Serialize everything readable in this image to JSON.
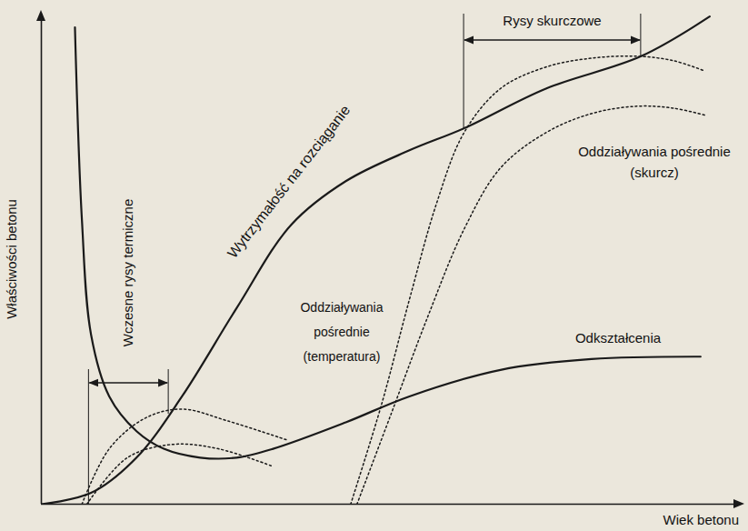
{
  "chart_data": {
    "type": "line",
    "xlabel": "Wiek betonu",
    "ylabel": "Właściwości betonu",
    "xlim": [
      0,
      100
    ],
    "ylim": [
      0,
      100
    ],
    "xticks": [],
    "yticks": [],
    "tick_labels": false,
    "grid": false,
    "series": [
      {
        "name": "Wytrzymałość na rozciąganie",
        "color": "#1a1a1a",
        "line_style": "solid",
        "x": [
          0,
          7.1,
          13.6,
          20.1,
          27.9,
          35.7,
          43.5,
          52.6,
          60.4,
          72.1,
          85.7,
          95.5
        ],
        "values": [
          0,
          2.3,
          9.5,
          22.0,
          40.0,
          57.0,
          65.9,
          72.2,
          76.7,
          84.8,
          91.4,
          99.5
        ]
      },
      {
        "name": "Odkształcenia",
        "color": "#1a1a1a",
        "line_style": "solid",
        "x": [
          4.8,
          5.8,
          7.1,
          9.7,
          13.6,
          17.5,
          22.7,
          27.9,
          33.1,
          43.5,
          52.6,
          65.6,
          78.6,
          94.2
        ],
        "values": [
          97.3,
          57.9,
          34.6,
          22.0,
          14.9,
          11.3,
          9.5,
          9.5,
          11.3,
          16.7,
          22.0,
          27.4,
          29.6,
          30.1
        ]
      },
      {
        "name": "Oddziaływania pośrednie (temperatura)",
        "color": "#1a1a1a",
        "line_style": "dotted",
        "x": [
          5.8,
          9.7,
          14.9,
          20.1,
          26.6,
          35.1
        ],
        "values": [
          0,
          11.3,
          17.6,
          19.4,
          17.0,
          13.1
        ]
      },
      {
        "name": null,
        "color": "#1a1a1a",
        "line_style": "dotted",
        "x": [
          6.5,
          12.3,
          18.8,
          25.3,
          33.1
        ],
        "values": [
          0,
          9.5,
          12.2,
          11.3,
          7.7
        ]
      },
      {
        "name": "Oddziaływania pośrednie (skurcz)",
        "color": "#1a1a1a",
        "line_style": "dotted",
        "x": [
          44.2,
          48.6,
          52.6,
          56.5,
          60.4,
          65.6,
          72.1,
          78.6,
          85.1,
          90.3,
          94.8
        ],
        "values": [
          0,
          20.3,
          41.8,
          61.5,
          75.8,
          84.8,
          89.2,
          91.0,
          91.4,
          90.5,
          88.4
        ]
      },
      {
        "name": null,
        "color": "#1a1a1a",
        "line_style": "dotted",
        "x": [
          45.1,
          50.0,
          55.2,
          60.4,
          65.6,
          72.1,
          78.6,
          85.1,
          90.3,
          94.8
        ],
        "values": [
          0,
          18.5,
          38.2,
          56.1,
          68.6,
          75.8,
          79.7,
          81.2,
          80.8,
          79.4
        ]
      }
    ],
    "annotations": [
      {
        "text": "Wczesne rysy termiczne",
        "x_range": [
          6.8,
          18.2
        ]
      },
      {
        "text": "Rysy skurczowe",
        "x_range": [
          60.4,
          85.7
        ]
      }
    ]
  }
}
